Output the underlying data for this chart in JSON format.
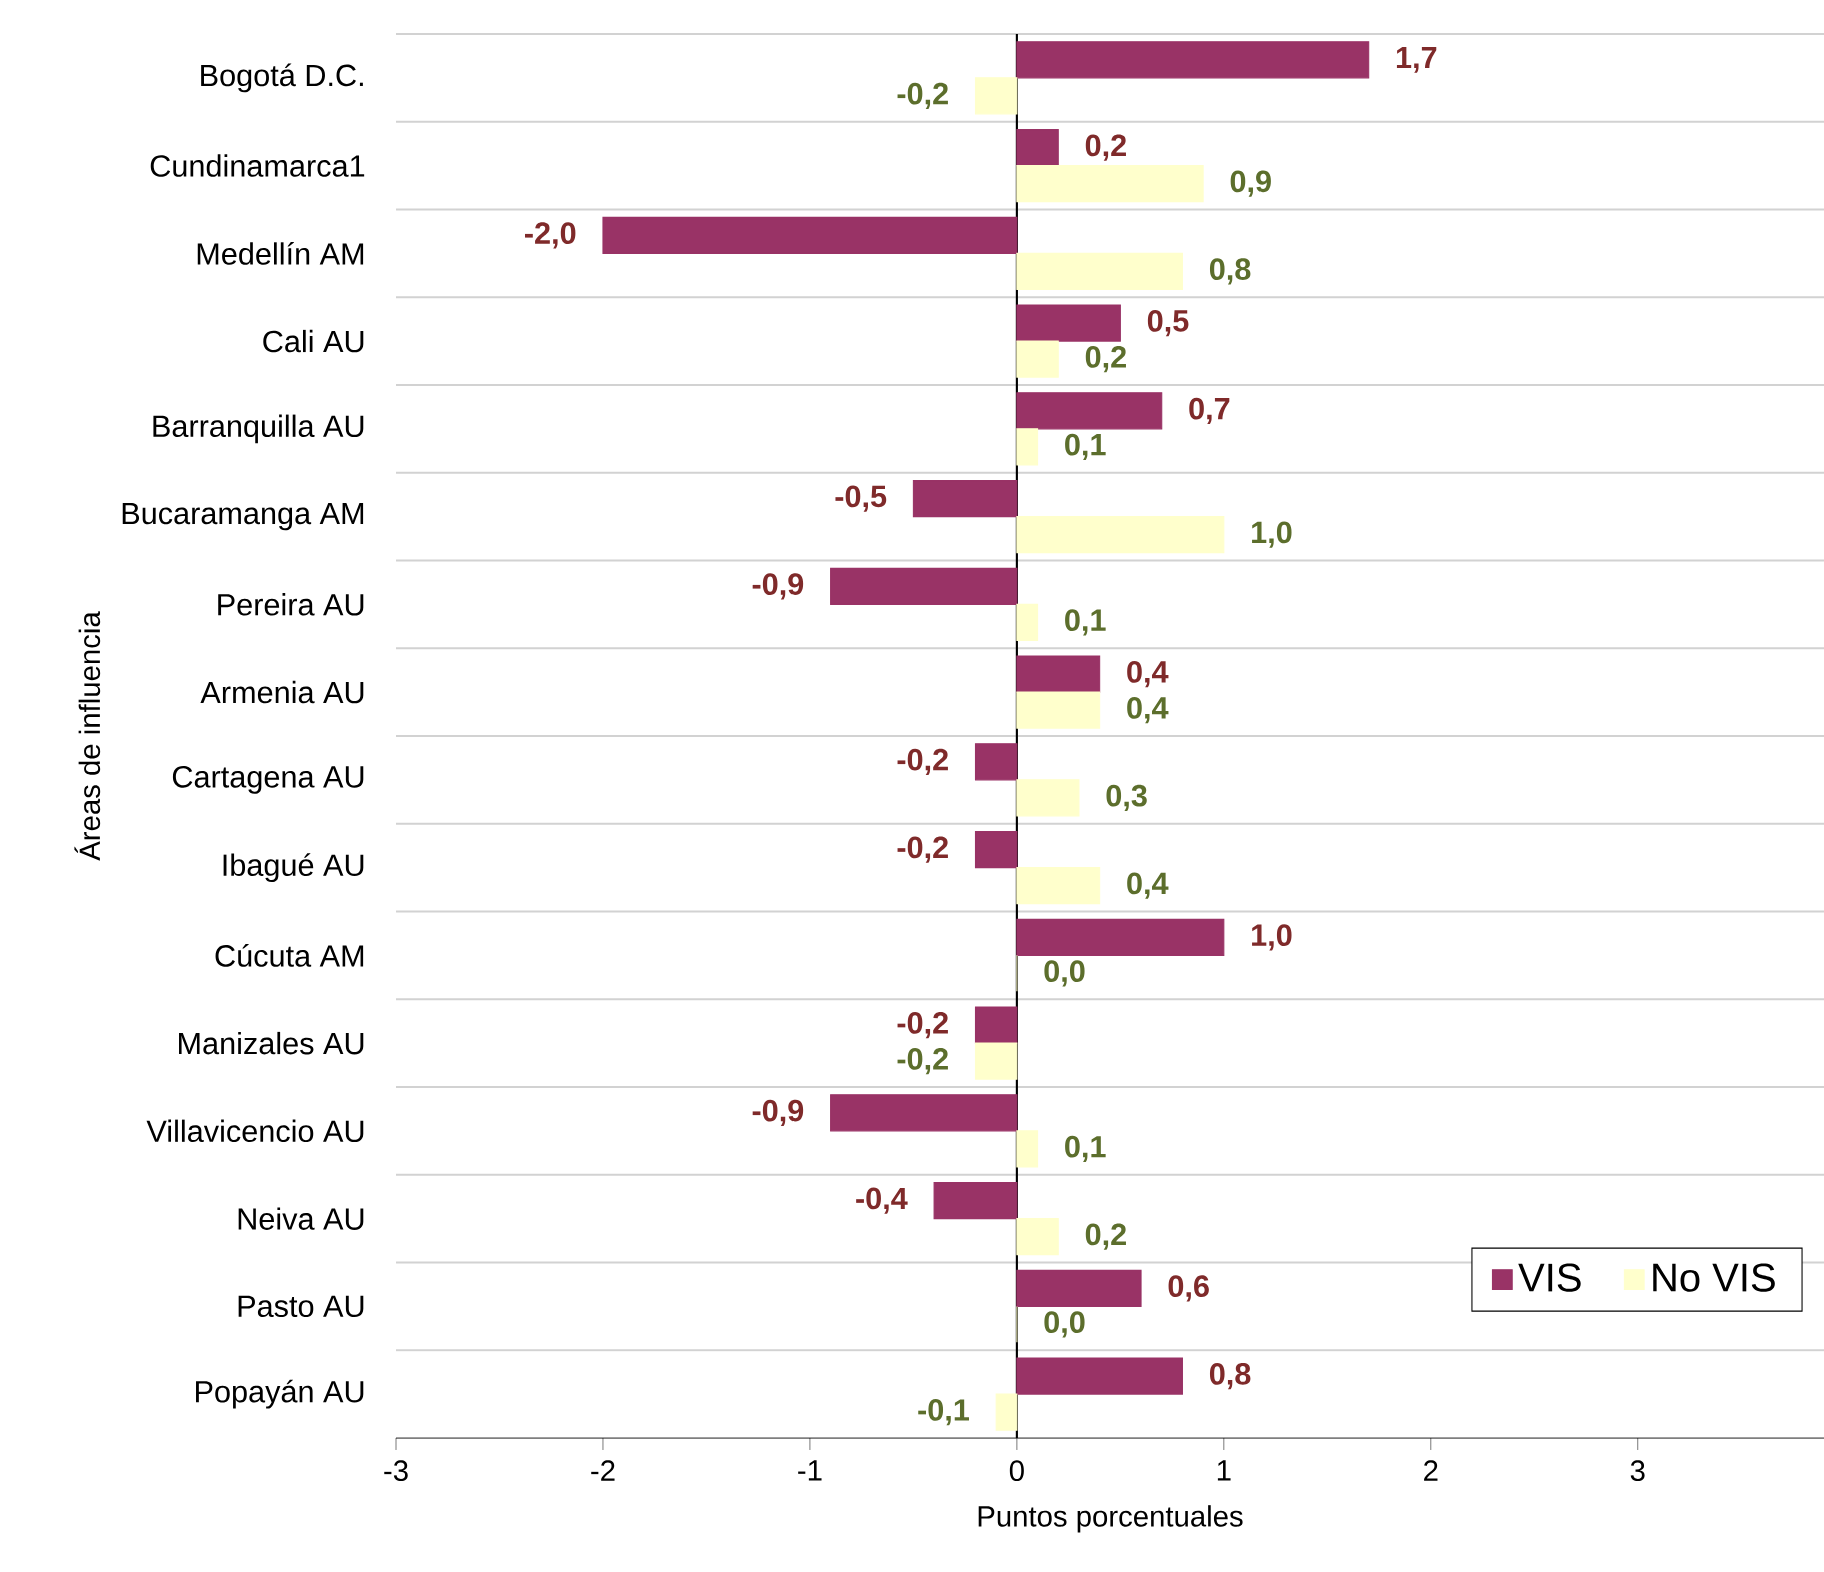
{
  "chart_data": {
    "type": "bar",
    "orientation": "horizontal",
    "xlabel": "Puntos porcentuales",
    "ylabel": "Áreas de influencia",
    "categories": [
      "Bogotá D.C.",
      "Cundinamarca1",
      "Medellín  AM",
      "Cali  AU",
      "Barranquilla  AU",
      "Bucaramanga AM",
      "Pereira  AU",
      "Armenia  AU",
      "Cartagena AU",
      "Ibagué AU",
      "Cúcuta AM",
      "Manizales AU",
      "Villavicencio AU",
      "Neiva AU",
      "Pasto AU",
      "Popayán AU"
    ],
    "series": [
      {
        "name": "VIS",
        "color": "#993366",
        "values": [
          1.7,
          0.2,
          -2.0,
          0.5,
          0.7,
          -0.5,
          -0.9,
          0.4,
          -0.2,
          -0.2,
          1.0,
          -0.2,
          -0.9,
          -0.4,
          0.6,
          0.8
        ],
        "value_labels": [
          "1,7",
          "0,2",
          "-2,0",
          "0,5",
          "0,7",
          "-0,5",
          "-0,9",
          "0,4",
          "-0,2",
          "-0,2",
          "1,0",
          "-0,2",
          "-0,9",
          "-0,4",
          "0,6",
          "0,8"
        ]
      },
      {
        "name": "No VIS",
        "color": "#ffffcc",
        "values": [
          -0.2,
          0.9,
          0.8,
          0.2,
          0.1,
          1.0,
          0.1,
          0.4,
          0.3,
          0.4,
          0.0,
          -0.2,
          0.1,
          0.2,
          0.0,
          -0.1
        ],
        "value_labels": [
          "-0,2",
          "0,9",
          "0,8",
          "0,2",
          "0,1",
          "1,0",
          "0,1",
          "0,4",
          "0,3",
          "0,4",
          "0,0",
          "-0,2",
          "0,1",
          "0,2",
          "0,0",
          "-0,1"
        ]
      }
    ],
    "xlim": [
      -3,
      3.9
    ],
    "xticks": [
      -3,
      -2,
      -1,
      0,
      1,
      2,
      3
    ],
    "grid": "y",
    "legend": "bottom right"
  }
}
